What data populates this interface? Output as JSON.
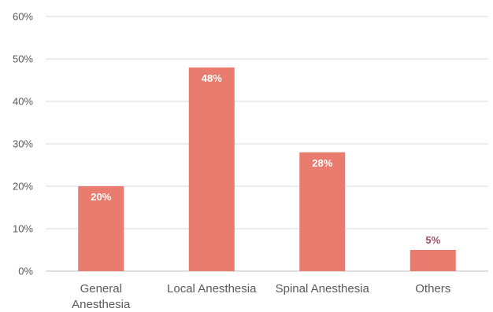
{
  "chart_data": {
    "type": "bar",
    "categories": [
      [
        "General",
        "Anesthesia"
      ],
      [
        "Local Anesthesia"
      ],
      [
        "Spinal Anesthesia"
      ],
      [
        "Others"
      ]
    ],
    "values": [
      20,
      48,
      28,
      5
    ],
    "data_labels": [
      "20%",
      "48%",
      "28%",
      "5%"
    ],
    "y_ticks": [
      "0%",
      "10%",
      "20%",
      "30%",
      "40%",
      "50%",
      "60%"
    ],
    "ylim": [
      0,
      60
    ],
    "grid": true,
    "title": "",
    "xlabel": "",
    "ylabel": "",
    "colors": {
      "bar": "#e97c6f",
      "label_inside": "#ffffff",
      "label_outside": "#a04f6c",
      "grid": "#d9d9d9",
      "axis": "#bfbfbf"
    }
  }
}
